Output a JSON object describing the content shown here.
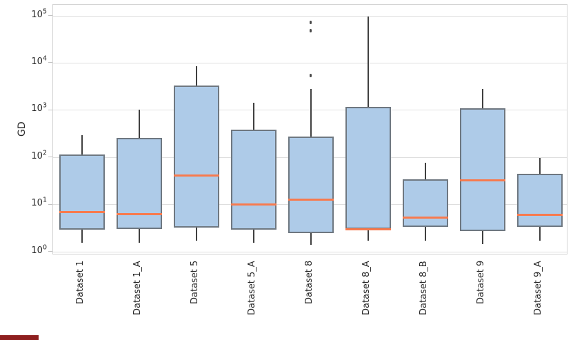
{
  "figure": {
    "ylabel": "GD",
    "colors": {
      "box_fill": "#aecbe8",
      "box_edge": "#6e7780",
      "median": "#f87a4d",
      "whisker": "#3f3f3f",
      "grid": "#dedede",
      "spine": "#d4d4d4",
      "tick_text": "#262626",
      "background": "#ffffff",
      "flier": "#4a4a4a",
      "bottom_left_artifact": "#8e1f1f"
    },
    "y_axis": {
      "scale": "log",
      "tick_base": "10",
      "tick_exponents": [
        0,
        1,
        2,
        3,
        4,
        5
      ]
    }
  },
  "chart_data": {
    "type": "box",
    "title": "",
    "xlabel": "",
    "ylabel": "GD",
    "yscale": "log",
    "ylim": [
      0.83,
      186000
    ],
    "grid": "horizontal-major-only",
    "legend": "none",
    "categories": [
      "Dataset 1",
      "Dataset 1_A",
      "Dataset 5",
      "Dataset 5_A",
      "Dataset 8",
      "Dataset 8_A",
      "Dataset 8_B",
      "Dataset 9",
      "Dataset 9_A"
    ],
    "boxes": [
      {
        "label": "Dataset 1",
        "whisker_low": 1.6,
        "q1": 3.0,
        "median": 7.2,
        "q3": 118,
        "whisker_high": 310,
        "outliers": []
      },
      {
        "label": "Dataset 1_A",
        "whisker_low": 1.6,
        "q1": 3.1,
        "median": 6.5,
        "q3": 265,
        "whisker_high": 1050,
        "outliers": []
      },
      {
        "label": "Dataset 5",
        "whisker_low": 1.8,
        "q1": 3.4,
        "median": 43,
        "q3": 3500,
        "whisker_high": 9000,
        "outliers": []
      },
      {
        "label": "Dataset 5_A",
        "whisker_low": 1.6,
        "q1": 3.0,
        "median": 10.5,
        "q3": 400,
        "whisker_high": 1500,
        "outliers": []
      },
      {
        "label": "Dataset 8",
        "whisker_low": 1.45,
        "q1": 2.6,
        "median": 13,
        "q3": 290,
        "whisker_high": 2900,
        "outliers": [
          5600,
          50000,
          74000
        ]
      },
      {
        "label": "Dataset 8_A",
        "whisker_low": 1.75,
        "q1": 3.1,
        "median": 3.1,
        "q3": 1230,
        "whisker_high": 100000,
        "outliers": []
      },
      {
        "label": "Dataset 8_B",
        "whisker_low": 1.8,
        "q1": 3.5,
        "median": 5.4,
        "q3": 36,
        "whisker_high": 80,
        "outliers": []
      },
      {
        "label": "Dataset 9",
        "whisker_low": 1.5,
        "q1": 2.8,
        "median": 34,
        "q3": 1150,
        "whisker_high": 2950,
        "outliers": []
      },
      {
        "label": "Dataset 9_A",
        "whisker_low": 1.8,
        "q1": 3.5,
        "median": 6.2,
        "q3": 47,
        "whisker_high": 100,
        "outliers": []
      }
    ]
  }
}
